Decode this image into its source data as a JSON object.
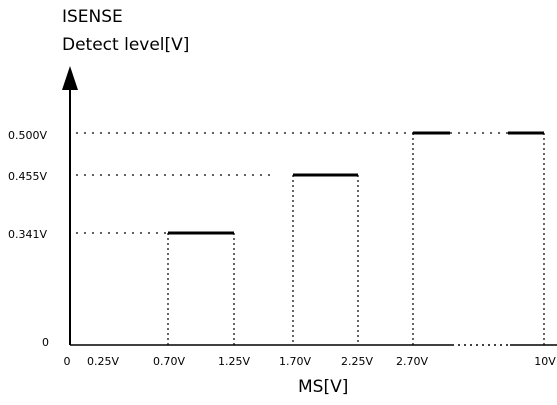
{
  "chart_data": {
    "type": "step",
    "ylabel_line1": "ISENSE",
    "ylabel_line2": "Detect level[V]",
    "xlabel": "MS[V]",
    "x_origin_label": "0",
    "y_origin_label": "0",
    "x_tick_labels": [
      "0.25V",
      "0.70V",
      "1.25V",
      "1.70V",
      "2.25V",
      "2.70V",
      "10V"
    ],
    "y_tick_labels": [
      "0.341V",
      "0.455V",
      "0.500V"
    ],
    "segments": [
      {
        "x_start": "0.70V",
        "x_end": "1.25V",
        "y": 0.341
      },
      {
        "x_start": "1.70V",
        "x_end": "2.25V",
        "y": 0.455
      },
      {
        "x_start": "2.70V",
        "x_end": "",
        "y": 0.5
      },
      {
        "x_start": "",
        "x_end": "10V",
        "y": 0.5
      }
    ],
    "levels": [
      0,
      0.341,
      0.455,
      0.5
    ],
    "x_axis_break": true,
    "grid": false
  }
}
